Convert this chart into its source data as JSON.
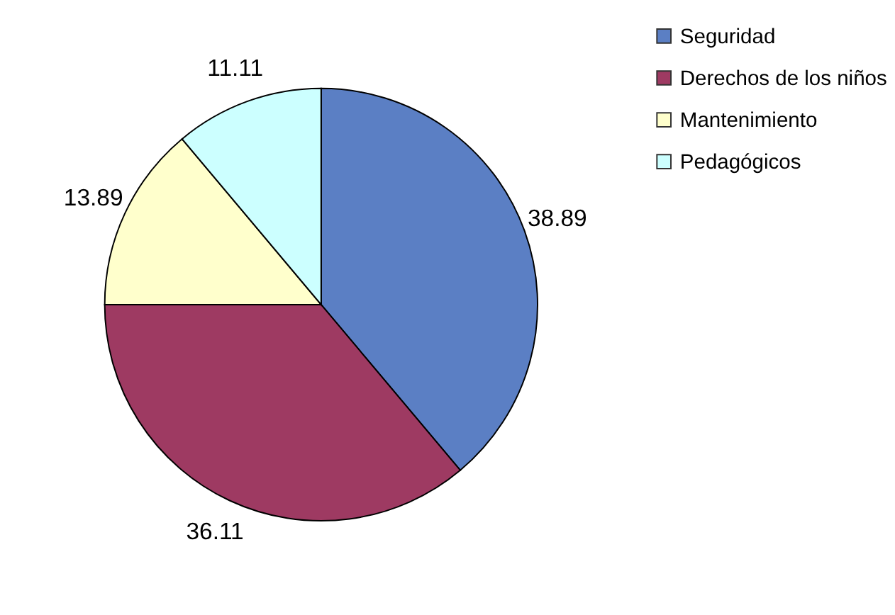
{
  "chart_data": {
    "type": "pie",
    "categories": [
      "Seguridad",
      "Derechos de los niños",
      "Mantenimiento",
      "Pedagógicos"
    ],
    "values": [
      38.89,
      36.11,
      13.89,
      11.11
    ],
    "colors": [
      "#5b7fc4",
      "#9e3a62",
      "#ffffcc",
      "#ccffff"
    ],
    "data_labels": true,
    "legend": "right"
  }
}
